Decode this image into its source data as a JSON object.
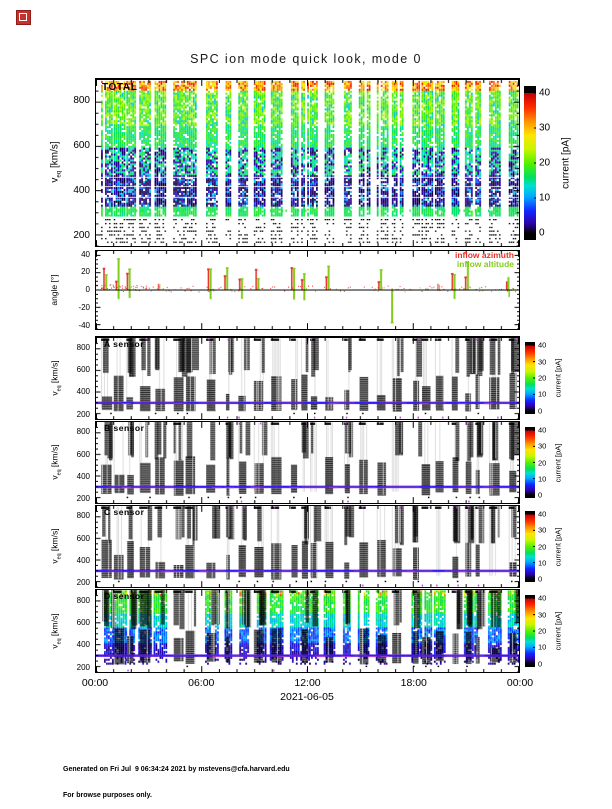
{
  "title": "SPC ion mode quick look, mode 0",
  "panels": {
    "total": {
      "label": "TOTAL"
    },
    "angle": {
      "legend_azimuth": "inflow azimuth",
      "legend_altitude": "inflow altitude"
    },
    "a": {
      "label": "A sensor"
    },
    "b": {
      "label": "B sensor"
    },
    "c": {
      "label": "C sensor"
    },
    "d": {
      "label": "D sensor"
    }
  },
  "axes": {
    "v_prefix": "v",
    "v_sub": "eq",
    "v_unit": "[km/s]",
    "angle_label": "angle [°]",
    "v_ticks": [
      200,
      400,
      600,
      800
    ],
    "angle_ticks": [
      40,
      20,
      0,
      -20,
      -40
    ],
    "x_ticks": [
      "00:00",
      "06:00",
      "12:00",
      "18:00",
      "00:00"
    ],
    "x_date": "2021-06-05"
  },
  "colorbar": {
    "label": "current [pA]",
    "ticks": [
      0,
      10,
      20,
      30,
      40
    ],
    "min": 0,
    "max": 40
  },
  "colors": {
    "azimuth_red": "#e63329",
    "altitude_green": "#84cc1c",
    "overlay_purple": "#5b21d6",
    "overlay_blue": "#2a18ff",
    "overlay_magenta": "#b23bd6",
    "frame": "#000000"
  },
  "footer": {
    "line1": "Generated on Fri Jul  9 06:34:24 2021 by mstevens@cfa.harvard.edu",
    "line2": "For browse purposes only."
  },
  "chart_data": [
    {
      "type": "heatmap",
      "panel": "TOTAL",
      "ylabel": "v_eq [km/s]",
      "ylim": [
        150,
        900
      ],
      "y_ticks": [
        200,
        400,
        600,
        800
      ],
      "x_ticks": [
        "00:00",
        "06:00",
        "12:00",
        "18:00",
        "00:00"
      ],
      "x_range": [
        "2021-06-05 00:00",
        "2021-06-06 00:00"
      ],
      "color_label": "current [pA]",
      "color_range": [
        0,
        40
      ],
      "palette": "rainbow, black at both ends",
      "features": [
        "quasi-periodic vertical measurement bursts roughly every 30-45 min all day",
        "high current 15-40 pA (green/yellow/orange/red) at 600-900 km/s",
        "red-orange flecks near 860-900 km/s",
        "dark 0-5 pA (navy/black) patches between 330-600 km/s",
        "bright 10-20 pA green/cyan band near 300 km/s",
        "sparse black dashes below 280 km/s",
        "thin white horizontal data gaps near 370, 420 and 460 km/s"
      ]
    },
    {
      "type": "line",
      "panel": "angle",
      "ylabel": "angle [°]",
      "ylim": [
        -45,
        45
      ],
      "y_ticks": [
        -40,
        -20,
        0,
        20,
        40
      ],
      "zero_line": true,
      "series": [
        {
          "name": "inflow azimuth",
          "color": "#e63329",
          "behavior": "scatter near 0° with spikes to +10..+35° during bursts, densest before 08:00"
        },
        {
          "name": "inflow altitude",
          "color": "#84cc1c",
          "behavior": "near 0° with spikes to +10..+35°, dips to -8..-14°, one deep dip to about -38° near 17:00"
        }
      ]
    },
    {
      "type": "heatmap",
      "panel": "A sensor",
      "ylabel": "v_eq [km/s]",
      "ylim": [
        150,
        900
      ],
      "y_ticks": [
        200,
        400,
        600,
        800
      ],
      "color_label": "current [pA]",
      "color_range": [
        0,
        40
      ],
      "features": [
        "dense black (~0 pA) columns from ~220 to ~560 km/s at each burst",
        "narrow black columns reaching 900 km/s",
        "faint gray vertical striping between bursts",
        "purple/blue overlay line near 300 km/s across full day",
        "magenta flecks at top and bottom edges"
      ]
    },
    {
      "type": "heatmap",
      "panel": "B sensor",
      "ylabel": "v_eq [km/s]",
      "ylim": [
        150,
        900
      ],
      "y_ticks": [
        200,
        400,
        600,
        800
      ],
      "color_label": "current [pA]",
      "color_range": [
        0,
        40
      ],
      "features": [
        "same burst pattern as A sensor: black low-current columns, purple/blue line near 300 km/s"
      ]
    },
    {
      "type": "heatmap",
      "panel": "C sensor",
      "ylabel": "v_eq [km/s]",
      "ylim": [
        150,
        900
      ],
      "y_ticks": [
        200,
        400,
        600,
        800
      ],
      "color_label": "current [pA]",
      "color_range": [
        0,
        40
      ],
      "features": [
        "same burst pattern as A and B sensors: black low-current columns, purple/blue line near 300 km/s"
      ]
    },
    {
      "type": "heatmap",
      "panel": "D sensor",
      "ylabel": "v_eq [km/s]",
      "ylim": [
        150,
        900
      ],
      "y_ticks": [
        200,
        400,
        600,
        800
      ],
      "color_label": "current [pA]",
      "color_range": [
        0,
        40
      ],
      "features": [
        "colored columns 5-40 pA: green/yellow at 700-900 km/s, cyan 550-700, blue 300-550",
        "black ~0 pA bars from ~220 to ~550 km/s overlaid at bursts",
        "purple/blue overlay line near 300 km/s"
      ]
    }
  ],
  "render": {
    "seed": 20210605
  }
}
